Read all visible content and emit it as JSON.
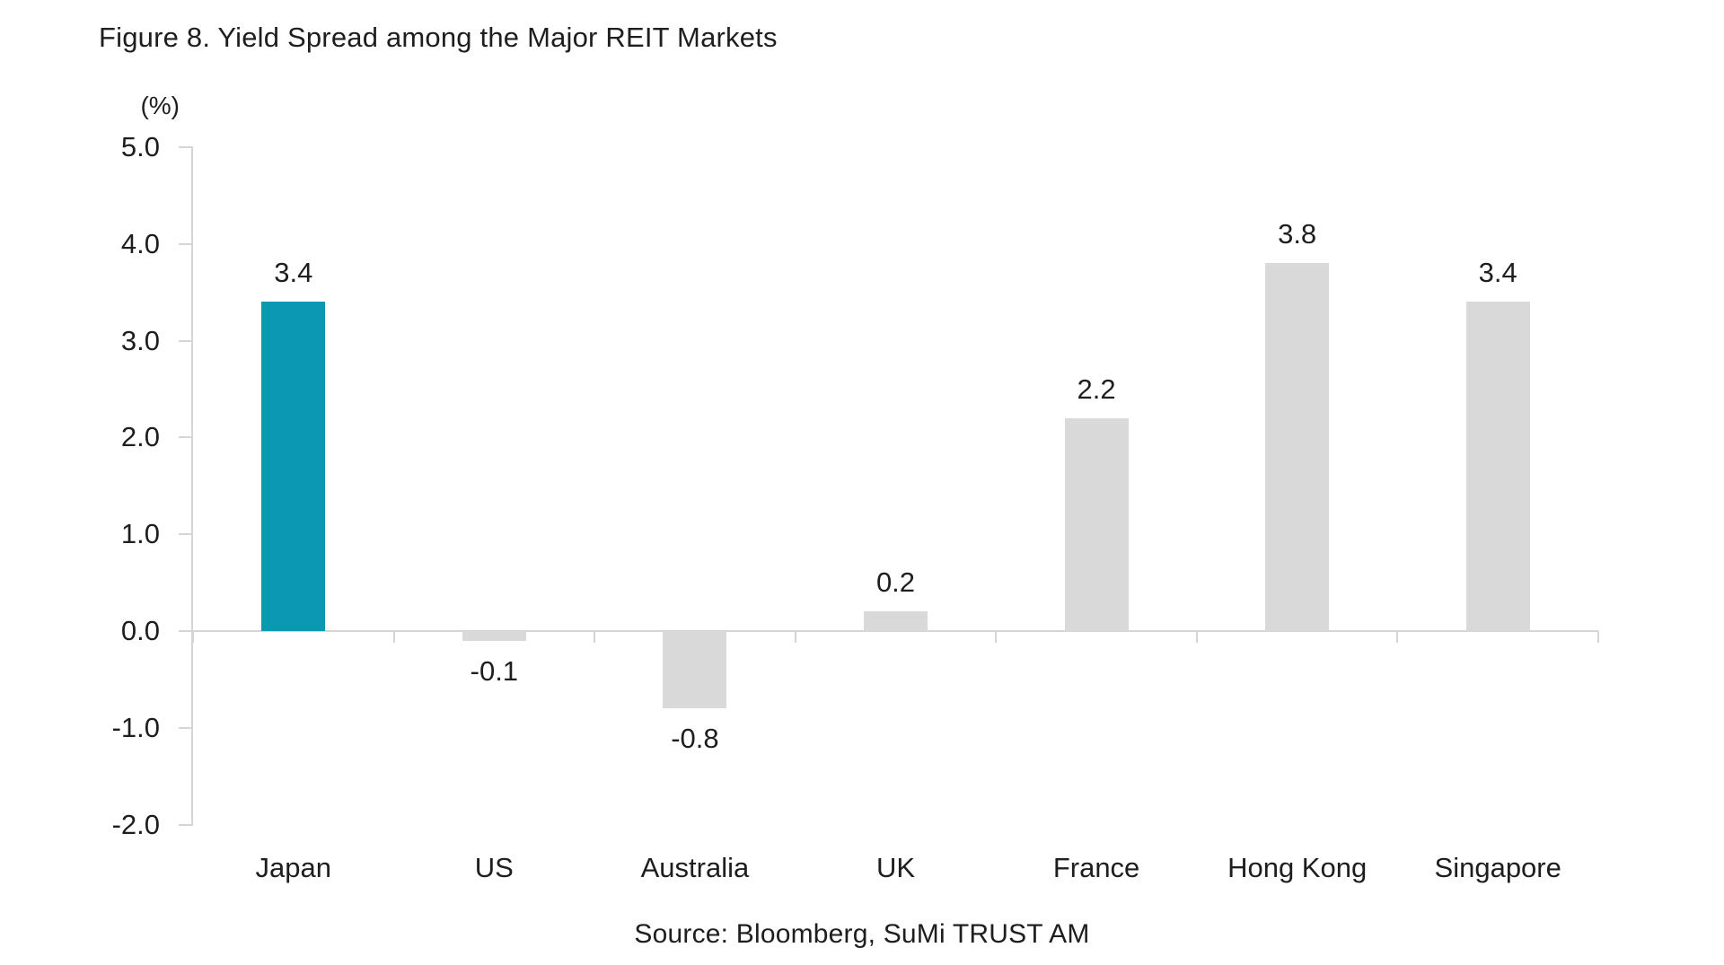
{
  "figure": {
    "title": "Figure 8. Yield Spread among the Major REIT Markets",
    "source": "Source: Bloomberg, SuMi TRUST AM"
  },
  "chart_data": {
    "type": "bar",
    "title": "Figure 8. Yield Spread among the Major REIT Markets",
    "unit_label": "(%)",
    "xlabel": "",
    "ylabel": "(%)",
    "categories": [
      "Japan",
      "US",
      "Australia",
      "UK",
      "France",
      "Hong Kong",
      "Singapore"
    ],
    "values": [
      3.4,
      -0.1,
      -0.8,
      0.2,
      2.2,
      3.8,
      3.4
    ],
    "value_labels": [
      "3.4",
      "-0.1",
      "-0.8",
      "0.2",
      "2.2",
      "3.8",
      "3.4"
    ],
    "yticks": [
      5.0,
      4.0,
      3.0,
      2.0,
      1.0,
      0.0,
      -1.0,
      -2.0
    ],
    "ytick_labels": [
      "5.0",
      "4.0",
      "3.0",
      "2.0",
      "1.0",
      "0.0",
      "-1.0",
      "-2.0"
    ],
    "ylim": [
      -2.0,
      5.0
    ],
    "grid": false,
    "legend": false,
    "highlight_category": "Japan",
    "colors": {
      "highlight_bar": "#0A98B2",
      "default_bar": "#D9D9D9",
      "axis": "#D5D5D5",
      "text": "#1E1E1E"
    },
    "source": "Source: Bloomberg, SuMi TRUST AM"
  }
}
